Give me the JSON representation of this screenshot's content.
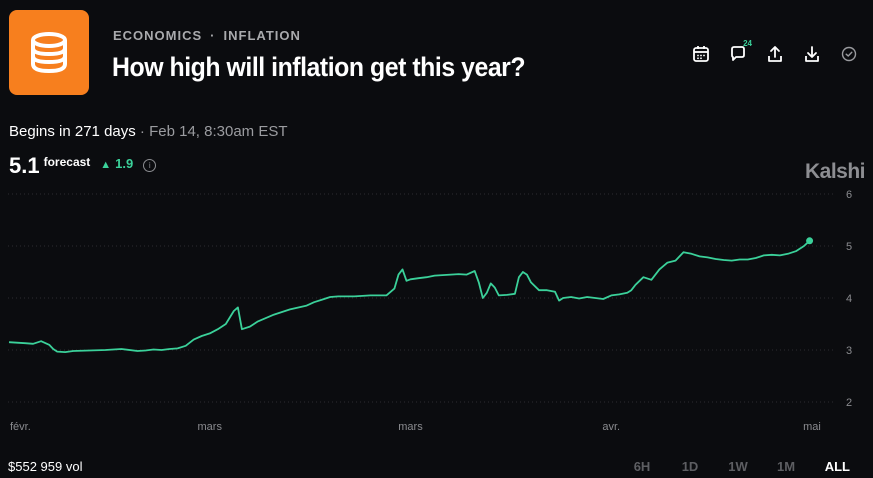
{
  "header": {
    "category": "ECONOMICS",
    "subcategory": "INFLATION",
    "separator": "·",
    "title": "How high will inflation get this year?",
    "comment_count": "24"
  },
  "event": {
    "begins_label": "Begins in 271 days",
    "begins_detail": " · Feb 14, 8:30am EST"
  },
  "forecast": {
    "value": "5.1",
    "label": "forecast",
    "change": "1.9",
    "change_color": "#3bd19a"
  },
  "brand": "Kalshi",
  "footer": {
    "volume": "$552 959 vol",
    "ranges": [
      "6H",
      "1D",
      "1W",
      "1M",
      "ALL"
    ],
    "active_range": "ALL"
  },
  "icons": [
    "calendar-icon",
    "comment-icon",
    "share-icon",
    "download-icon",
    "check-circle-icon",
    "database-icon",
    "info-icon"
  ],
  "chart_data": {
    "type": "line",
    "line_color": "#3bd19a",
    "grid": true,
    "grid_style": "dotted horizontal",
    "ylim": [
      1.8,
      6.2
    ],
    "y_ticks": [
      6,
      5,
      4,
      3,
      2
    ],
    "x_tick_labels": [
      "févr.",
      "mars",
      "mars",
      "avr.",
      "mai"
    ],
    "x_tick_positions": [
      0,
      25,
      50,
      75,
      100
    ],
    "x": [
      0,
      2,
      3,
      4,
      5,
      5.5,
      6,
      7,
      8,
      10,
      12,
      14,
      16,
      17,
      18,
      19,
      20,
      21,
      22,
      23,
      24,
      25,
      26,
      27,
      28,
      28.5,
      29,
      30,
      31,
      33,
      35,
      37,
      38,
      39,
      40,
      41,
      42,
      43,
      44,
      45,
      46,
      47,
      48,
      48.5,
      49,
      49.5,
      50,
      51,
      52,
      53,
      54,
      55,
      56,
      57,
      58,
      58.5,
      59,
      59.5,
      60,
      60.5,
      61,
      62,
      63,
      63.5,
      64,
      64.5,
      65,
      66,
      67,
      68,
      68.5,
      69,
      70,
      71,
      72,
      73,
      74,
      75,
      76,
      77,
      77.5,
      78,
      79,
      80,
      81,
      82,
      83,
      84,
      85,
      86,
      87,
      88,
      89,
      90,
      91,
      92,
      93,
      94,
      95,
      96,
      97,
      98,
      99,
      99.7
    ],
    "y": [
      3.15,
      3.13,
      3.12,
      3.17,
      3.1,
      3.02,
      2.97,
      2.96,
      2.98,
      2.99,
      3.0,
      3.02,
      2.98,
      2.99,
      3.01,
      3.0,
      3.02,
      3.03,
      3.08,
      3.2,
      3.27,
      3.32,
      3.4,
      3.5,
      3.75,
      3.82,
      3.4,
      3.45,
      3.55,
      3.68,
      3.78,
      3.85,
      3.92,
      3.97,
      4.02,
      4.03,
      4.03,
      4.03,
      4.04,
      4.05,
      4.05,
      4.05,
      4.18,
      4.45,
      4.55,
      4.33,
      4.36,
      4.38,
      4.4,
      4.43,
      4.44,
      4.45,
      4.46,
      4.45,
      4.52,
      4.3,
      4.0,
      4.1,
      4.28,
      4.2,
      4.05,
      4.06,
      4.08,
      4.4,
      4.5,
      4.45,
      4.3,
      4.15,
      4.15,
      4.12,
      3.95,
      4.0,
      4.02,
      3.99,
      4.02,
      4.0,
      3.98,
      4.05,
      4.07,
      4.1,
      4.15,
      4.25,
      4.4,
      4.35,
      4.55,
      4.68,
      4.72,
      4.88,
      4.85,
      4.8,
      4.78,
      4.75,
      4.73,
      4.72,
      4.74,
      4.74,
      4.77,
      4.82,
      4.83,
      4.82,
      4.85,
      4.9,
      5.0,
      5.1
    ]
  }
}
